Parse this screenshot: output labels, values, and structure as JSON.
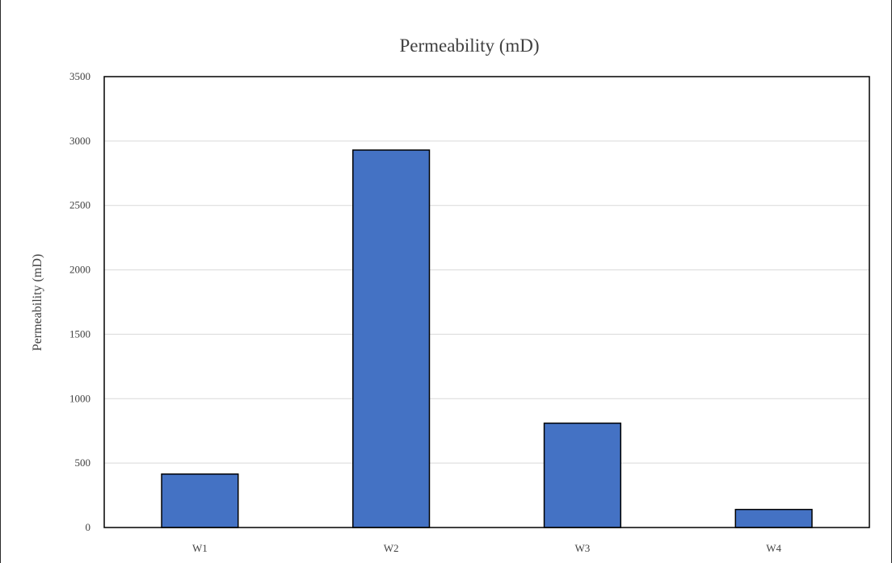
{
  "chart_data": {
    "type": "bar",
    "title": "Permeability (mD)",
    "xlabel": "",
    "ylabel": "Permeability (mD)",
    "categories": [
      "W1",
      "W2",
      "W3",
      "W4"
    ],
    "values": [
      415,
      2930,
      810,
      140
    ],
    "ylim": [
      0,
      3500
    ],
    "yticks": [
      0,
      500,
      1000,
      1500,
      2000,
      2500,
      3000,
      3500
    ],
    "grid": true,
    "legend": "none",
    "colors": {
      "bar_fill": "#4472c4",
      "bar_stroke": "#000000",
      "gridline": "#d9d9d9",
      "axis": "#000000",
      "text": "#404040"
    }
  }
}
